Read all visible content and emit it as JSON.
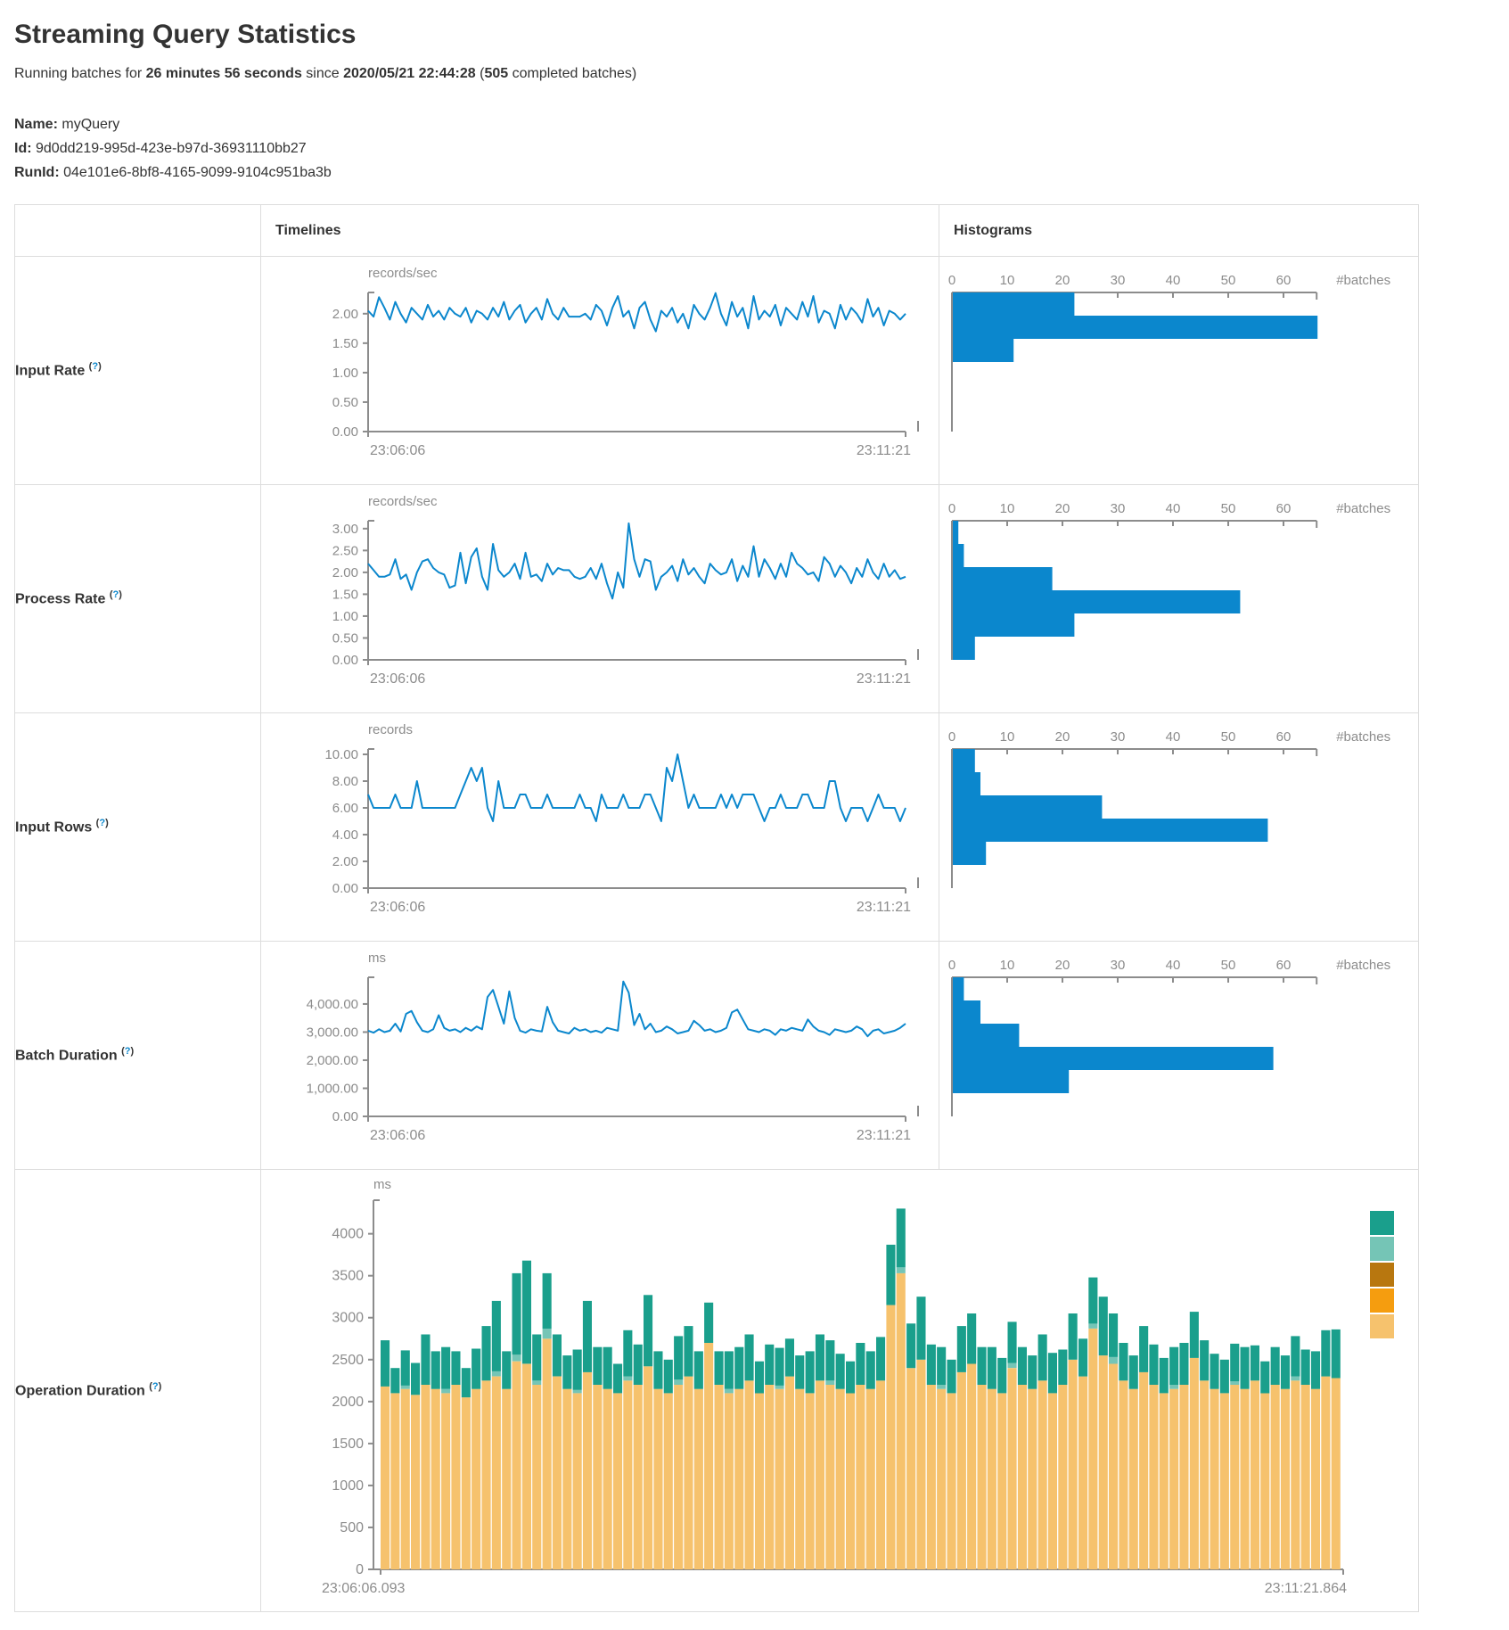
{
  "header": {
    "title": "Streaming Query Statistics",
    "subtitle": {
      "prefix": "Running batches for ",
      "duration": "26 minutes 56 seconds",
      "since_word": " since ",
      "start_time": "2020/05/21 22:44:28",
      "paren_open": " (",
      "batch_count": "505",
      "suffix": " completed batches)"
    },
    "info": [
      {
        "label": "Name:",
        "value": "myQuery"
      },
      {
        "label": "Id:",
        "value": "9d0dd219-995d-423e-b97d-36931110bb27"
      },
      {
        "label": "RunId:",
        "value": "04e101e6-8bf8-4165-9099-9104c951ba3b"
      }
    ]
  },
  "table": {
    "columns": {
      "timelines": "Timelines",
      "histograms": "Histograms"
    },
    "help_marker": {
      "open": "(",
      "mark": "?",
      "close": ")"
    },
    "rows": [
      {
        "label": "Input Rate"
      },
      {
        "label": "Process Rate"
      },
      {
        "label": "Input Rows"
      },
      {
        "label": "Batch Duration"
      },
      {
        "label": "Operation Duration"
      }
    ]
  },
  "colors": {
    "line_blue": "#0b87cd",
    "hist_blue": "#0b87cd",
    "axis_gray": "#8c8c8c",
    "tick_text_gray": "#8c8c8c",
    "border_gray": "#dddddd",
    "legend": [
      "#1a9f8c",
      "#75c5b6",
      "#b8770f",
      "#f59d0f",
      "#f6c26d"
    ]
  },
  "chart_data": [
    {
      "row": "Input Rate",
      "type": "line",
      "unit": "records/sec",
      "x_range": [
        "23:06:06",
        "23:11:21"
      ],
      "y_ticks": [
        0,
        0.5,
        1,
        1.5,
        2
      ],
      "y_max": 2.36,
      "tick_format": "decimal2",
      "values": [
        2.05,
        1.95,
        2.28,
        2.1,
        1.9,
        2.2,
        2.0,
        1.85,
        2.1,
        2.0,
        1.9,
        2.15,
        1.95,
        2.05,
        1.9,
        2.1,
        2.0,
        1.95,
        2.1,
        1.85,
        2.05,
        2.0,
        1.9,
        2.1,
        1.95,
        2.2,
        1.9,
        2.05,
        2.15,
        1.85,
        2.0,
        2.1,
        1.9,
        2.25,
        2.0,
        1.9,
        2.1,
        1.95,
        1.95,
        1.95,
        2.0,
        1.9,
        2.15,
        2.05,
        1.8,
        2.1,
        2.3,
        1.95,
        2.05,
        1.75,
        2.1,
        2.2,
        1.9,
        1.7,
        2.05,
        1.95,
        2.1,
        1.85,
        2.0,
        1.75,
        2.15,
        2.0,
        1.9,
        2.1,
        2.35,
        2.0,
        1.8,
        2.2,
        1.95,
        2.1,
        1.75,
        2.3,
        1.9,
        2.05,
        1.95,
        2.15,
        1.8,
        2.1,
        2.0,
        1.9,
        2.2,
        1.95,
        2.3,
        1.85,
        2.05,
        2.0,
        1.75,
        2.15,
        1.9,
        2.1,
        2.0,
        1.85,
        2.25,
        1.95,
        2.1,
        1.8,
        2.05,
        2.0,
        1.9,
        2.0
      ],
      "histogram": {
        "type": "bar",
        "orientation": "horizontal",
        "x_ticks": [
          0,
          10,
          20,
          30,
          40,
          50,
          60
        ],
        "axis_max": 66,
        "xlabel": "#batches",
        "values": [
          22,
          66,
          11
        ]
      }
    },
    {
      "row": "Process Rate",
      "type": "line",
      "unit": "records/sec",
      "x_range": [
        "23:06:06",
        "23:11:21"
      ],
      "y_ticks": [
        0,
        0.5,
        1,
        1.5,
        2,
        2.5,
        3
      ],
      "y_max": 3.18,
      "tick_format": "decimal2",
      "values": [
        2.2,
        2.05,
        1.9,
        1.9,
        1.95,
        2.3,
        1.85,
        1.95,
        1.6,
        2.0,
        2.25,
        2.3,
        2.1,
        2.0,
        1.95,
        1.65,
        1.7,
        2.45,
        1.75,
        2.35,
        2.55,
        1.9,
        1.6,
        2.65,
        2.05,
        1.9,
        2.0,
        2.2,
        1.85,
        2.45,
        1.9,
        1.95,
        1.8,
        2.2,
        1.95,
        2.1,
        2.05,
        2.05,
        1.9,
        1.85,
        1.9,
        2.1,
        1.85,
        2.2,
        1.75,
        1.4,
        2.0,
        1.65,
        3.12,
        2.3,
        1.9,
        2.3,
        2.25,
        1.6,
        1.9,
        2.0,
        2.15,
        1.8,
        2.3,
        1.95,
        2.1,
        1.9,
        1.75,
        2.2,
        2.05,
        1.95,
        2.0,
        2.3,
        1.8,
        2.15,
        1.9,
        2.6,
        1.9,
        2.3,
        2.1,
        1.85,
        2.2,
        1.9,
        2.45,
        2.2,
        2.1,
        1.95,
        2.0,
        1.8,
        2.35,
        2.2,
        1.9,
        2.15,
        2.0,
        1.75,
        2.1,
        1.9,
        2.3,
        2.0,
        1.85,
        2.2,
        1.9,
        2.05,
        1.85,
        1.9
      ],
      "histogram": {
        "type": "bar",
        "orientation": "horizontal",
        "x_ticks": [
          0,
          10,
          20,
          30,
          40,
          50,
          60
        ],
        "axis_max": 66,
        "xlabel": "#batches",
        "values": [
          1,
          2,
          18,
          52,
          22,
          4
        ]
      }
    },
    {
      "row": "Input Rows",
      "type": "line",
      "unit": "records",
      "x_range": [
        "23:06:06",
        "23:11:21"
      ],
      "y_ticks": [
        0,
        2,
        4,
        6,
        8,
        10
      ],
      "y_max": 10.4,
      "tick_format": "decimal2",
      "values": [
        7,
        6,
        6,
        6,
        6,
        7,
        6,
        6,
        6,
        8,
        6,
        6,
        6,
        6,
        6,
        6,
        6,
        7,
        8,
        9,
        8,
        9,
        6,
        5,
        8,
        6,
        6,
        6,
        7,
        7,
        6,
        6,
        6,
        7,
        6,
        6,
        6,
        6,
        6,
        7,
        6,
        6,
        5,
        7,
        6,
        6,
        6,
        7,
        6,
        6,
        6,
        7,
        7,
        6,
        5,
        9,
        8,
        10,
        8,
        6,
        7,
        6,
        6,
        6,
        6,
        7,
        6,
        7,
        6,
        7,
        7,
        7,
        6,
        5,
        6,
        6,
        7,
        6,
        6,
        6,
        7,
        7,
        6,
        6,
        6,
        8,
        8,
        6,
        5,
        6,
        6,
        6,
        5,
        6,
        7,
        6,
        6,
        6,
        5,
        6
      ],
      "histogram": {
        "type": "bar",
        "orientation": "horizontal",
        "x_ticks": [
          0,
          10,
          20,
          30,
          40,
          50,
          60
        ],
        "axis_max": 66,
        "xlabel": "#batches",
        "values": [
          4,
          5,
          27,
          57,
          6
        ]
      }
    },
    {
      "row": "Batch Duration",
      "type": "line",
      "unit": "ms",
      "x_range": [
        "23:06:06",
        "23:11:21"
      ],
      "y_ticks": [
        0,
        1000,
        2000,
        3000,
        4000
      ],
      "y_max": 4950,
      "tick_format": "decimal2",
      "values": [
        3050,
        2980,
        3100,
        3000,
        3050,
        3300,
        3020,
        3650,
        3750,
        3350,
        3050,
        3000,
        3100,
        3600,
        3150,
        3050,
        3100,
        3000,
        3150,
        3050,
        3200,
        3100,
        4250,
        4500,
        3900,
        3300,
        4450,
        3500,
        3050,
        2980,
        3100,
        3050,
        3020,
        3900,
        3350,
        3050,
        3000,
        2950,
        3150,
        3050,
        3100,
        3000,
        3050,
        2980,
        3150,
        3100,
        3050,
        4800,
        4400,
        3250,
        3650,
        3100,
        3300,
        3000,
        3050,
        3200,
        3100,
        2950,
        3000,
        3050,
        3400,
        3250,
        3050,
        3100,
        3000,
        3050,
        3150,
        3700,
        3800,
        3450,
        3100,
        3050,
        3000,
        3100,
        3050,
        2900,
        3100,
        3050,
        3150,
        3100,
        3050,
        3450,
        3200,
        3050,
        3000,
        2900,
        3100,
        3050,
        3000,
        3050,
        3200,
        3100,
        2850,
        3050,
        3100,
        2950,
        3000,
        3050,
        3150,
        3300
      ],
      "histogram": {
        "type": "bar",
        "orientation": "horizontal",
        "x_ticks": [
          0,
          10,
          20,
          30,
          40,
          50,
          60
        ],
        "axis_max": 66,
        "xlabel": "#batches",
        "values": [
          2,
          5,
          12,
          58,
          21
        ]
      }
    },
    {
      "row": "Operation Duration",
      "type": "stacked_bar",
      "unit": "ms",
      "x_range": [
        "23:06:06.093",
        "23:11:21.864"
      ],
      "y_ticks": [
        0,
        500,
        1000,
        1500,
        2000,
        2500,
        3000,
        3500,
        4000
      ],
      "y_max": 4400,
      "tick_format": "int",
      "legend_colors": [
        "#1a9f8c",
        "#75c5b6",
        "#b8770f",
        "#f59d0f",
        "#f6c26d"
      ],
      "segment_colors_bottom_to_top": [
        "#f6c26d",
        "#75c5b6",
        "#1a9f8c"
      ],
      "bars": [
        [
          2180,
          0,
          550
        ],
        [
          2100,
          0,
          300
        ],
        [
          2150,
          40,
          420
        ],
        [
          2080,
          0,
          380
        ],
        [
          2200,
          0,
          600
        ],
        [
          2150,
          0,
          450
        ],
        [
          2100,
          50,
          500
        ],
        [
          2200,
          0,
          400
        ],
        [
          2050,
          0,
          350
        ],
        [
          2150,
          0,
          480
        ],
        [
          2250,
          0,
          650
        ],
        [
          2300,
          60,
          840
        ],
        [
          2150,
          0,
          450
        ],
        [
          2480,
          80,
          970
        ],
        [
          2450,
          0,
          1230
        ],
        [
          2200,
          50,
          550
        ],
        [
          2750,
          120,
          660
        ],
        [
          2300,
          0,
          500
        ],
        [
          2150,
          0,
          400
        ],
        [
          2100,
          40,
          480
        ],
        [
          2350,
          0,
          850
        ],
        [
          2200,
          0,
          450
        ],
        [
          2150,
          0,
          500
        ],
        [
          2100,
          0,
          350
        ],
        [
          2250,
          50,
          550
        ],
        [
          2200,
          0,
          480
        ],
        [
          2420,
          0,
          850
        ],
        [
          2150,
          0,
          450
        ],
        [
          2100,
          0,
          400
        ],
        [
          2200,
          60,
          520
        ],
        [
          2300,
          0,
          600
        ],
        [
          2150,
          0,
          450
        ],
        [
          2700,
          0,
          480
        ],
        [
          2200,
          0,
          400
        ],
        [
          2100,
          50,
          450
        ],
        [
          2150,
          0,
          500
        ],
        [
          2250,
          0,
          550
        ],
        [
          2100,
          0,
          380
        ],
        [
          2200,
          0,
          480
        ],
        [
          2150,
          40,
          450
        ],
        [
          2300,
          0,
          450
        ],
        [
          2150,
          0,
          400
        ],
        [
          2100,
          0,
          500
        ],
        [
          2250,
          0,
          550
        ],
        [
          2200,
          50,
          480
        ],
        [
          2150,
          0,
          420
        ],
        [
          2100,
          0,
          380
        ],
        [
          2200,
          0,
          500
        ],
        [
          2150,
          0,
          450
        ],
        [
          2250,
          0,
          520
        ],
        [
          3150,
          0,
          720
        ],
        [
          3530,
          70,
          700
        ],
        [
          2400,
          0,
          530
        ],
        [
          2500,
          0,
          750
        ],
        [
          2200,
          0,
          480
        ],
        [
          2150,
          50,
          450
        ],
        [
          2100,
          0,
          400
        ],
        [
          2350,
          0,
          550
        ],
        [
          2450,
          0,
          600
        ],
        [
          2200,
          0,
          450
        ],
        [
          2150,
          0,
          500
        ],
        [
          2100,
          0,
          420
        ],
        [
          2400,
          60,
          490
        ],
        [
          2200,
          0,
          450
        ],
        [
          2150,
          0,
          400
        ],
        [
          2250,
          0,
          550
        ],
        [
          2100,
          0,
          480
        ],
        [
          2200,
          0,
          420
        ],
        [
          2500,
          0,
          550
        ],
        [
          2300,
          0,
          450
        ],
        [
          2870,
          60,
          550
        ],
        [
          2550,
          0,
          700
        ],
        [
          2450,
          80,
          520
        ],
        [
          2250,
          0,
          450
        ],
        [
          2150,
          0,
          400
        ],
        [
          2350,
          0,
          550
        ],
        [
          2200,
          0,
          480
        ],
        [
          2100,
          0,
          420
        ],
        [
          2150,
          50,
          450
        ],
        [
          2200,
          0,
          500
        ],
        [
          2520,
          0,
          550
        ],
        [
          2250,
          0,
          480
        ],
        [
          2150,
          0,
          420
        ],
        [
          2100,
          0,
          400
        ],
        [
          2200,
          40,
          450
        ],
        [
          2150,
          0,
          500
        ],
        [
          2250,
          0,
          420
        ],
        [
          2100,
          0,
          380
        ],
        [
          2200,
          0,
          450
        ],
        [
          2150,
          0,
          400
        ],
        [
          2250,
          50,
          480
        ],
        [
          2200,
          0,
          420
        ],
        [
          2150,
          0,
          450
        ],
        [
          2300,
          0,
          550
        ],
        [
          2280,
          0,
          580
        ]
      ]
    }
  ]
}
